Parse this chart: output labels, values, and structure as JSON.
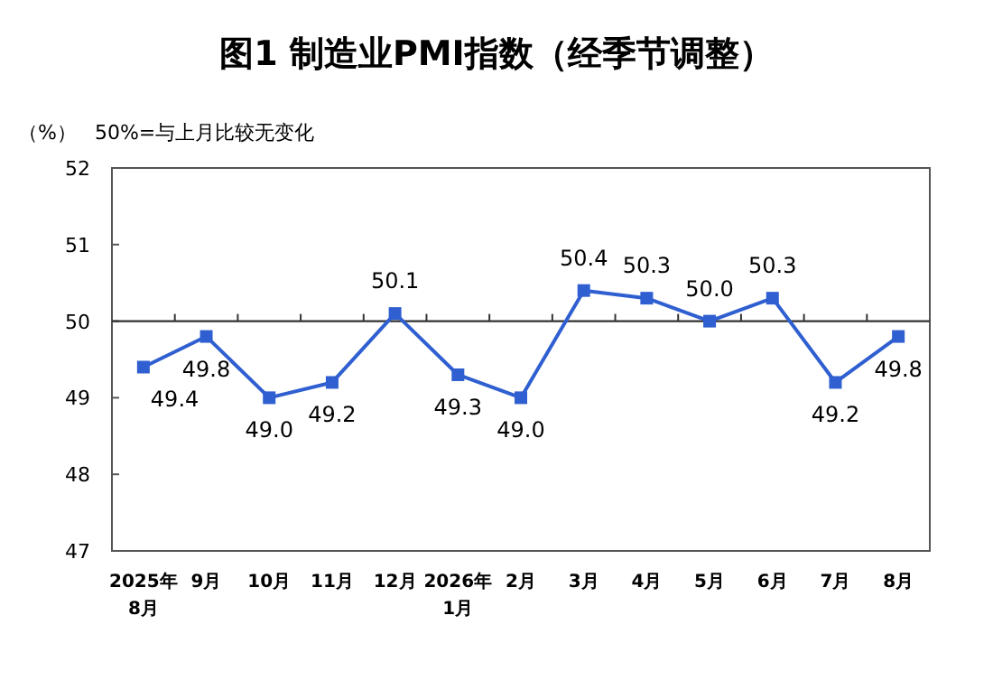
{
  "chart_data": {
    "type": "line",
    "title": "图1 制造业PMI指数（经季节调整）",
    "annotations": [
      "（%）",
      "50%=与上月比较无变化"
    ],
    "categories": [
      "2025年\n8月",
      "9月",
      "10月",
      "11月",
      "12月",
      "2026年\n1月",
      "2月",
      "3月",
      "4月",
      "5月",
      "6月",
      "7月",
      "8月"
    ],
    "series": [
      {
        "color": "#2f5fd0",
        "values": [
          49.4,
          49.8,
          49.0,
          49.2,
          50.1,
          49.3,
          49.0,
          50.4,
          50.3,
          50.0,
          50.3,
          49.2,
          49.8
        ],
        "value_labels": [
          "49.4",
          "49.8",
          "49.0",
          "49.2",
          "50.1",
          "49.3",
          "49.0",
          "50.4",
          "50.3",
          "50.0",
          "50.3",
          "49.2",
          "49.8"
        ]
      }
    ],
    "ylim": [
      47,
      52
    ],
    "yticks": [
      47,
      48,
      49,
      50,
      51,
      52
    ],
    "ref_lines": [
      {
        "axis": "y",
        "value": 50,
        "color": "#333333"
      }
    ],
    "marker": "square",
    "line_style": "solid",
    "grid": false
  }
}
